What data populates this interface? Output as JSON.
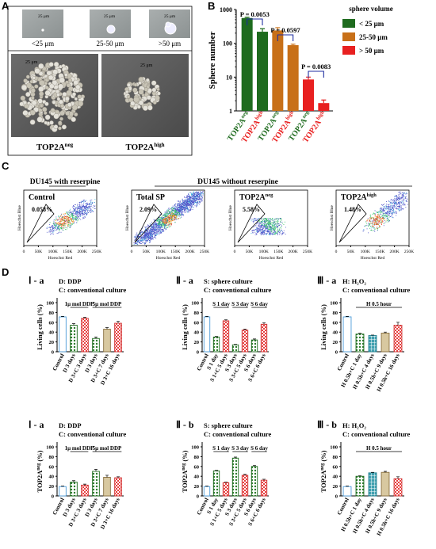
{
  "panels": {
    "A": "A",
    "B": "B",
    "C": "C",
    "D": "D"
  },
  "panelA": {
    "small": [
      {
        "scale": "25 μm",
        "label": "<25 μm"
      },
      {
        "scale": "25 μm",
        "label": "25-50 μm"
      },
      {
        "scale": "25 μm",
        "label": ">50 μm"
      }
    ],
    "large": [
      {
        "scale": "25 μm",
        "label": "TOP2A",
        "sup": "neg"
      },
      {
        "scale": "25 μm",
        "label": "TOP2A",
        "sup": "high"
      }
    ]
  },
  "panelB": {
    "ylabel": "Sphere number",
    "legend_title": "sphere volume",
    "legend": [
      {
        "label": "< 25 μm",
        "color": "#1e6b1e"
      },
      {
        "label": "25-50 μm",
        "color": "#c87018"
      },
      {
        "label": "> 50 μm",
        "color": "#e82020"
      }
    ],
    "pvals": [
      "P = 0.0053",
      "P = 0.0597",
      "P = 0.0083"
    ],
    "yticks": [
      "1",
      "10",
      "100",
      "1000"
    ],
    "xlabels": [
      {
        "base": "TOP2A",
        "sup": "neg",
        "color": "#1e6b1e"
      },
      {
        "base": "TOP2A",
        "sup": "high",
        "color": "#e82020"
      },
      {
        "base": "TOP2A",
        "sup": "neg",
        "color": "#1e6b1e"
      },
      {
        "base": "TOP2A",
        "sup": "high",
        "color": "#e82020"
      },
      {
        "base": "TOP2A",
        "sup": "neg",
        "color": "#1e6b1e"
      },
      {
        "base": "TOP2A",
        "sup": "high",
        "color": "#e82020"
      }
    ]
  },
  "panelC": {
    "with_title": "DU145 with reserpine",
    "without_title": "DU145 without reserpine",
    "ylabel": "Hoeschst Blue",
    "xlabel": "Hoeschst Red",
    "xticks": [
      "0",
      "50K",
      "100K",
      "150K",
      "200K",
      "250K"
    ],
    "plots": [
      {
        "title": "Control",
        "pct": "0.058%"
      },
      {
        "title": "Total SP",
        "pct": "2.09%"
      },
      {
        "title": "TOP2A",
        "sup": "neg",
        "pct": "5.58%"
      },
      {
        "title": "TOP2A",
        "sup": "high",
        "pct": "1.48%"
      }
    ]
  },
  "panelD": {
    "ylabel_living": "Living cells (%)",
    "ylabel_top2a": "TOP2A",
    "ylabel_top2a_sup": "neg",
    "ylabel_top2a_tail": " (%)"
  },
  "chart_data": [
    {
      "type": "bar",
      "title": "Sphere number",
      "ylabel": "Sphere number",
      "yscale": "log",
      "ylim": [
        1,
        1000
      ],
      "categories": [
        "TOP2A neg (<25 μm)",
        "TOP2A high (<25 μm)",
        "TOP2A neg (25-50 μm)",
        "TOP2A high (25-50 μm)",
        "TOP2A neg (>50 μm)",
        "TOP2A high (>50 μm)"
      ],
      "values": [
        560,
        220,
        240,
        88,
        8.5,
        1.7
      ],
      "errors": [
        30,
        50,
        50,
        6,
        1.5,
        0.4
      ],
      "colors": [
        "#1e6b1e",
        "#1e6b1e",
        "#c87018",
        "#c87018",
        "#e82020",
        "#e82020"
      ]
    },
    {
      "type": "bar",
      "title": "Ⅰ - a",
      "legend_lines": [
        "D: DDP",
        "C: conventional culture"
      ],
      "brackets": [
        "1μ mol DDP",
        "5μ mol DDP"
      ],
      "ylabel": "Living cells (%)",
      "ylim": [
        0,
        100
      ],
      "yticks": [
        "0",
        "20",
        "40",
        "60",
        "80",
        "100"
      ],
      "categories": [
        "Control",
        "D 3 days",
        "D 3+C 3 days",
        "D 3 days",
        "D 3+C 7 days",
        "D 3+C 16 days"
      ],
      "values": [
        71,
        54,
        68,
        27,
        46,
        58
      ],
      "errors": [
        1,
        3,
        2,
        3,
        3,
        4
      ]
    },
    {
      "type": "bar",
      "title": "Ⅱ - a",
      "legend_lines": [
        "S: sphere culture",
        "C: conventional culture"
      ],
      "brackets": [
        "S 1 day",
        "S 3 day",
        "S 6 day"
      ],
      "ylabel": "Living cells (%)",
      "ylim": [
        0,
        100
      ],
      "yticks": [
        "0",
        "20",
        "40",
        "60",
        "80",
        "100"
      ],
      "categories": [
        "Control",
        "S 1 day",
        "S 1+C 5 days",
        "S 3 days",
        "S 3+C 5 days",
        "S 6 days",
        "S 6+C 6 days"
      ],
      "values": [
        71,
        30,
        63,
        14,
        44,
        24,
        56
      ],
      "errors": [
        1,
        1,
        2,
        1,
        2,
        2,
        3
      ]
    },
    {
      "type": "bar",
      "title": "Ⅲ - a",
      "legend_lines": [
        "H: H₂O₂",
        "C: conventional culture"
      ],
      "brackets": [
        "H 0.5 hour"
      ],
      "ylabel": "Living cells (%)",
      "ylim": [
        0,
        100
      ],
      "yticks": [
        "0",
        "20",
        "40",
        "60",
        "80",
        "100"
      ],
      "categories": [
        "Control",
        "H 0.5h+C 1 day",
        "H 0.5h+C 4 days",
        "H 0.5h+C 9 days",
        "H 0.5h+C 16 days"
      ],
      "values": [
        71,
        36,
        33,
        38,
        54
      ],
      "errors": [
        1,
        2,
        1,
        2,
        6
      ]
    },
    {
      "type": "bar",
      "title": "Ⅰ - a",
      "legend_lines": [
        "D: DDP",
        "C: conventional culture"
      ],
      "brackets": [
        "1μ mol DDP",
        "5μ mol DDP"
      ],
      "ylabel": "TOP2A neg (%)",
      "ylim": [
        0,
        100
      ],
      "yticks": [
        "0",
        "20",
        "40",
        "60",
        "80",
        "100"
      ],
      "categories": [
        "Control",
        "D 3 days",
        "D 3+C 3 days",
        "D 3 days",
        "D 3+C 7 days",
        "D 3+C 16 days"
      ],
      "values": [
        19,
        28,
        22,
        50,
        38,
        37
      ],
      "errors": [
        1,
        3,
        2,
        4,
        4,
        2
      ]
    },
    {
      "type": "bar",
      "title": "Ⅱ - b",
      "legend_lines": [
        "S: sphere culture",
        "C: conventional culture"
      ],
      "brackets": [
        "S 1 day",
        "S 3 day",
        "S 6 day"
      ],
      "ylabel": "TOP2A neg (%)",
      "ylim": [
        0,
        100
      ],
      "yticks": [
        "0",
        "20",
        "40",
        "60",
        "80",
        "100"
      ],
      "categories": [
        "Control",
        "S 1 day",
        "S 1+C 5 days",
        "S 3 days",
        "S 3+C 5 days",
        "S 6 days",
        "S 6+C 6 days"
      ],
      "values": [
        19,
        51,
        27,
        77,
        42,
        60,
        32
      ],
      "errors": [
        1,
        1,
        1,
        2,
        2,
        2,
        2
      ]
    },
    {
      "type": "bar",
      "title": "Ⅲ - b",
      "legend_lines": [
        "H: H₂O₂",
        "C: conventional culture"
      ],
      "brackets": [
        "H 0.5 hour"
      ],
      "ylabel": "TOP2A neg (%)",
      "ylim": [
        0,
        100
      ],
      "yticks": [
        "0",
        "20",
        "40",
        "60",
        "80",
        "100"
      ],
      "categories": [
        "Control",
        "H 0.5h+C 1 day",
        "H 0.5h+C 4 days",
        "H 0.5h+C 9 days",
        "H 0.5h+C 16 days"
      ],
      "values": [
        19,
        40,
        47,
        48,
        35
      ],
      "errors": [
        1,
        1,
        1,
        2,
        4
      ]
    }
  ]
}
